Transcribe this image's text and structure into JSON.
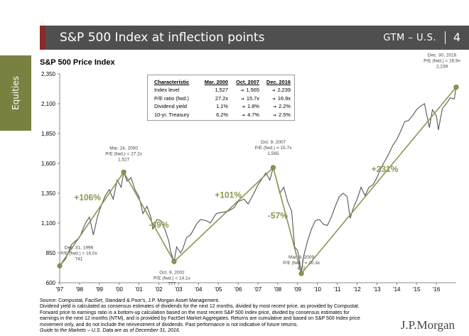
{
  "header": {
    "title": "S&P 500 Index at inflection points",
    "section": "GTM – U.S.",
    "page": "4"
  },
  "side_tab": {
    "label": "Equities"
  },
  "chart_data": {
    "type": "line",
    "title": "S&P 500 Price Index",
    "ylim": [
      600,
      2350
    ],
    "yticks": [
      600,
      850,
      1100,
      1350,
      1600,
      1850,
      2100,
      2350
    ],
    "ytick_labels": [
      "600",
      "850",
      "1,100",
      "1,350",
      "1,600",
      "1,850",
      "2,100",
      "2,350"
    ],
    "xlim": [
      1997,
      2017
    ],
    "xticks": [
      1997,
      1998,
      1999,
      2000,
      2001,
      2002,
      2003,
      2004,
      2005,
      2006,
      2007,
      2008,
      2009,
      2010,
      2011,
      2012,
      2013,
      2014,
      2015,
      2016
    ],
    "xtick_labels": [
      "'97",
      "'98",
      "'99",
      "'00",
      "'01",
      "'02",
      "'03",
      "'04",
      "'05",
      "'06",
      "'07",
      "'08",
      "'09",
      "'10",
      "'11",
      "'12",
      "'13",
      "'14",
      "'15",
      "'16"
    ],
    "series": [
      {
        "x": [
          1997.0,
          1997.3,
          1997.6,
          1997.8,
          1998.0,
          1998.3,
          1998.5,
          1998.7,
          1998.9,
          1999.1,
          1999.3,
          1999.5,
          1999.7,
          1999.9,
          2000.1,
          2000.23,
          2000.4,
          2000.6,
          2000.8,
          2001.0,
          2001.2,
          2001.4,
          2001.6,
          2001.7,
          2001.9,
          2002.1,
          2002.3,
          2002.5,
          2002.6,
          2002.77,
          2002.9,
          2003.1,
          2003.2,
          2003.4,
          2003.6,
          2003.9,
          2004.1,
          2004.4,
          2004.6,
          2004.9,
          2005.2,
          2005.5,
          2005.8,
          2006.0,
          2006.3,
          2006.5,
          2006.8,
          2007.0,
          2007.2,
          2007.4,
          2007.6,
          2007.77,
          2007.9,
          2008.1,
          2008.3,
          2008.5,
          2008.7,
          2008.85,
          2009.0,
          2009.19,
          2009.3,
          2009.5,
          2009.7,
          2009.9,
          2010.1,
          2010.3,
          2010.5,
          2010.7,
          2010.9,
          2011.1,
          2011.3,
          2011.5,
          2011.65,
          2011.8,
          2012.0,
          2012.2,
          2012.4,
          2012.6,
          2012.8,
          2013.0,
          2013.2,
          2013.4,
          2013.6,
          2013.8,
          2014.0,
          2014.2,
          2014.4,
          2014.6,
          2014.8,
          2015.0,
          2015.2,
          2015.4,
          2015.65,
          2015.8,
          2016.0,
          2016.1,
          2016.3,
          2016.5,
          2016.7,
          2016.9,
          2017.0
        ],
        "y": [
          741,
          800,
          920,
          950,
          980,
          1100,
          1150,
          1000,
          1150,
          1250,
          1330,
          1380,
          1300,
          1460,
          1400,
          1527,
          1450,
          1480,
          1380,
          1320,
          1180,
          1240,
          1150,
          1050,
          1130,
          1120,
          1050,
          950,
          860,
          777,
          900,
          850,
          880,
          980,
          1000,
          1090,
          1130,
          1120,
          1100,
          1180,
          1190,
          1200,
          1230,
          1280,
          1300,
          1260,
          1350,
          1420,
          1470,
          1520,
          1460,
          1565,
          1480,
          1350,
          1400,
          1280,
          1200,
          900,
          870,
          677,
          820,
          950,
          1050,
          1120,
          1130,
          1090,
          1080,
          1150,
          1240,
          1320,
          1350,
          1320,
          1140,
          1220,
          1300,
          1400,
          1330,
          1400,
          1420,
          1480,
          1560,
          1620,
          1680,
          1750,
          1800,
          1870,
          1950,
          1960,
          2000,
          2050,
          2080,
          2100,
          1900,
          2050,
          2000,
          1880,
          2060,
          2100,
          2150,
          2140,
          2239
        ]
      }
    ],
    "trend_line": {
      "x": [
        1997.0,
        2000.23,
        2002.77,
        2007.77,
        2009.19,
        2017.0
      ],
      "y": [
        741,
        1527,
        777,
        1565,
        677,
        2239
      ]
    },
    "annotations": [
      {
        "x": 1997.0,
        "y": 741,
        "lines": [
          "Dec. 31, 1996",
          "P/E (fwd.) = 16.0x",
          "741"
        ]
      },
      {
        "x": 2000.23,
        "y": 1527,
        "lines": [
          "Mar. 24, 2000",
          "P/E (fwd.) = 27.2x",
          "1,527"
        ]
      },
      {
        "x": 2002.77,
        "y": 777,
        "lines": [
          "Oct. 9, 2002",
          "P/E (fwd.) = 14.1x",
          "777"
        ]
      },
      {
        "x": 2007.77,
        "y": 1565,
        "lines": [
          "Oct. 9, 2007",
          "P/E (fwd.) = 15.7x",
          "1,565"
        ]
      },
      {
        "x": 2009.19,
        "y": 677,
        "lines": [
          "Mar. 9, 2009",
          "P/E (fwd.) = 10.3x",
          "677"
        ]
      },
      {
        "x": 2017.0,
        "y": 2239,
        "lines": [
          "Dec. 30, 2016",
          "P/E (fwd.) = 16.9x",
          "2,239"
        ]
      }
    ],
    "percent_labels": [
      {
        "text": "+106%",
        "x": 1998.4,
        "y": 1290
      },
      {
        "text": "-49%",
        "x": 2002.0,
        "y": 1060
      },
      {
        "text": "+101%",
        "x": 2005.5,
        "y": 1310
      },
      {
        "text": "-57%",
        "x": 2008.0,
        "y": 1140
      },
      {
        "text": "+231%",
        "x": 2013.4,
        "y": 1530
      }
    ]
  },
  "pe_table": {
    "headers": [
      "Characteristic",
      "Mar. 2000",
      "Oct. 2007",
      "Dec. 2016"
    ],
    "rows": [
      [
        "Index level",
        "1,527",
        "1,565",
        "2,239"
      ],
      [
        "P/E ratio (fwd.)",
        "27.2x",
        "15.7x",
        "16.9x"
      ],
      [
        "Dividend yield",
        "1.1%",
        "1.8%",
        "2.2%"
      ],
      [
        "10-yr. Treasury",
        "6.2%",
        "4.7%",
        "2.5%"
      ]
    ]
  },
  "footnote": [
    "Source: Compustat, FactSet, Standard & Poor's, J.P. Morgan Asset Management.",
    "Dividend yield is calculated as consensus estimates of dividends for the next 12 months, divided by most recent price, as provided by Compustat.",
    "Forward price to earnings ratio is a bottom-up calculation based on the most recent S&P 500 Index price, divided by consensus estimates for",
    "earnings in the next 12 months (NTM), and is provided by FactSet Market Aggregates. Returns are cumulative and based on S&P 500 Index price",
    "movement only, and do not include the reinvestment of dividends. Past performance is not indicative of future returns.",
    "Guide to the Markets – U.S. Data are as of December 31, 2016."
  ],
  "logo": "J.P.Morgan",
  "colors": {
    "header": "#4f4f4f",
    "accent": "#8c2a2a",
    "olive": "#7a8040",
    "trend": "#8c9650",
    "price": "#555555"
  }
}
